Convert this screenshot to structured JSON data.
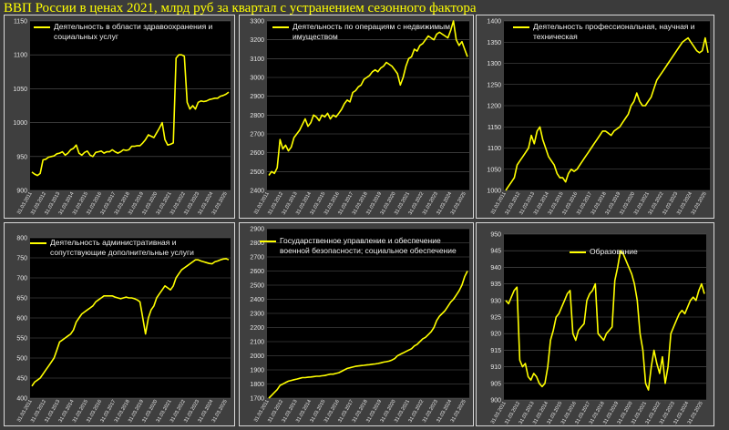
{
  "page_title": "ВВП России в ценах 2021, млрд руб за квартал с устранением сезонного фактора",
  "x_tick_labels": [
    "31.03.2011",
    "31.03.2012",
    "31.03.2013",
    "31.03.2014",
    "31.03.2015",
    "31.03.2016",
    "31.03.2017",
    "31.03.2018",
    "31.03.2019",
    "31.03.2020",
    "31.03.2021",
    "31.03.2022",
    "31.03.2023",
    "31.03.2024",
    "31.03.2025"
  ],
  "colors": {
    "line": "#ffff00",
    "plot_bg": "#000000",
    "panel_bg": "#3f3f3f",
    "grid": "#5a5a5a",
    "text": "#e6e6e6"
  },
  "chart_data": [
    {
      "type": "line",
      "title": "",
      "series": [
        {
          "name": "Деятельность в области здравоохранения и социальных услуг",
          "values": [
            927,
            924,
            922,
            925,
            945,
            946,
            949,
            950,
            951,
            954,
            955,
            957,
            952,
            955,
            960,
            962,
            967,
            955,
            952,
            956,
            958,
            952,
            950,
            956,
            957,
            958,
            955,
            957,
            957,
            960,
            957,
            955,
            957,
            960,
            959,
            960,
            965,
            965,
            966,
            966,
            970,
            975,
            982,
            980,
            978,
            985,
            992,
            1000,
            975,
            967,
            968,
            970,
            1095,
            1100,
            1100,
            1098,
            1030,
            1020,
            1025,
            1020,
            1030,
            1032,
            1031,
            1032,
            1034,
            1035,
            1036,
            1036,
            1039,
            1040,
            1042,
            1045
          ]
        }
      ],
      "ylim": [
        900,
        1150
      ],
      "yticks": [
        900,
        950,
        1000,
        1050,
        1100,
        1150
      ],
      "grid": true
    },
    {
      "type": "line",
      "title": "",
      "series": [
        {
          "name": "Деятельность по операциям с недвижимым имуществом",
          "values": [
            2480,
            2500,
            2490,
            2520,
            2670,
            2620,
            2640,
            2610,
            2630,
            2680,
            2700,
            2720,
            2750,
            2780,
            2740,
            2760,
            2800,
            2790,
            2770,
            2800,
            2790,
            2810,
            2780,
            2800,
            2790,
            2810,
            2830,
            2860,
            2880,
            2870,
            2920,
            2930,
            2950,
            2960,
            2990,
            3000,
            3010,
            3030,
            3040,
            3030,
            3050,
            3060,
            3080,
            3070,
            3060,
            3040,
            3020,
            2960,
            3000,
            3060,
            3100,
            3110,
            3150,
            3140,
            3170,
            3180,
            3200,
            3220,
            3210,
            3200,
            3230,
            3240,
            3230,
            3220,
            3210,
            3250,
            3300,
            3200,
            3170,
            3190,
            3150,
            3110
          ]
        }
      ],
      "ylim": [
        2400,
        3300
      ],
      "yticks": [
        2400,
        2500,
        2600,
        2700,
        2800,
        2900,
        3000,
        3100,
        3200,
        3300
      ],
      "grid": true
    },
    {
      "type": "line",
      "title": "",
      "series": [
        {
          "name": "Деятельность профессиональная, научная и техническая",
          "values": [
            1000,
            1010,
            1020,
            1030,
            1060,
            1070,
            1080,
            1090,
            1100,
            1130,
            1110,
            1140,
            1150,
            1120,
            1100,
            1080,
            1070,
            1060,
            1040,
            1030,
            1030,
            1020,
            1040,
            1050,
            1045,
            1050,
            1060,
            1070,
            1080,
            1090,
            1100,
            1110,
            1120,
            1130,
            1140,
            1140,
            1135,
            1130,
            1140,
            1145,
            1150,
            1160,
            1170,
            1180,
            1200,
            1210,
            1230,
            1210,
            1200,
            1200,
            1210,
            1220,
            1240,
            1260,
            1270,
            1280,
            1290,
            1300,
            1310,
            1320,
            1330,
            1340,
            1350,
            1355,
            1360,
            1350,
            1340,
            1330,
            1325,
            1330,
            1360,
            1325
          ]
        }
      ],
      "ylim": [
        1000,
        1400
      ],
      "yticks": [
        1000,
        1050,
        1100,
        1150,
        1200,
        1250,
        1300,
        1350,
        1400
      ],
      "grid": true
    },
    {
      "type": "line",
      "title": "",
      "series": [
        {
          "name": "Деятельность административная и сопутствующие дополнительные услуги",
          "values": [
            430,
            440,
            445,
            450,
            460,
            470,
            480,
            490,
            500,
            520,
            540,
            545,
            550,
            555,
            560,
            570,
            590,
            600,
            610,
            615,
            620,
            625,
            630,
            640,
            645,
            650,
            655,
            655,
            655,
            655,
            652,
            650,
            648,
            650,
            652,
            650,
            650,
            648,
            645,
            640,
            600,
            560,
            600,
            620,
            630,
            650,
            660,
            670,
            680,
            675,
            670,
            680,
            700,
            710,
            720,
            725,
            730,
            735,
            740,
            745,
            745,
            742,
            740,
            738,
            736,
            735,
            740,
            742,
            745,
            747,
            748,
            745
          ]
        }
      ],
      "ylim": [
        400,
        800
      ],
      "yticks": [
        400,
        450,
        500,
        550,
        600,
        650,
        700,
        750,
        800
      ],
      "grid": true
    },
    {
      "type": "line",
      "title": "",
      "series": [
        {
          "name": "Государственное управление и обеспечение военной безопасности; социальное обеспечение",
          "values": [
            1700,
            1720,
            1740,
            1760,
            1790,
            1800,
            1810,
            1820,
            1825,
            1830,
            1835,
            1840,
            1845,
            1845,
            1848,
            1850,
            1852,
            1855,
            1855,
            1858,
            1860,
            1865,
            1870,
            1870,
            1875,
            1880,
            1890,
            1900,
            1910,
            1915,
            1920,
            1925,
            1928,
            1930,
            1932,
            1935,
            1937,
            1940,
            1942,
            1945,
            1950,
            1955,
            1958,
            1962,
            1970,
            1980,
            2000,
            2010,
            2020,
            2030,
            2040,
            2050,
            2070,
            2080,
            2100,
            2120,
            2130,
            2150,
            2170,
            2200,
            2250,
            2280,
            2300,
            2320,
            2350,
            2380,
            2400,
            2430,
            2460,
            2500,
            2560,
            2600
          ]
        }
      ],
      "ylim": [
        1700,
        2900
      ],
      "yticks": [
        1700,
        1800,
        1900,
        2000,
        2100,
        2200,
        2300,
        2400,
        2500,
        2600,
        2700,
        2800,
        2900
      ],
      "grid": true
    },
    {
      "type": "line",
      "title": "",
      "series": [
        {
          "name": "Образование",
          "values": [
            930,
            929,
            931,
            933,
            934,
            912,
            910,
            911,
            907,
            906,
            908,
            907,
            905,
            904,
            905,
            910,
            918,
            921,
            925,
            926,
            928,
            930,
            932,
            933,
            920,
            918,
            921,
            922,
            923,
            930,
            932,
            933,
            935,
            920,
            919,
            918,
            920,
            921,
            922,
            936,
            940,
            945,
            944,
            942,
            940,
            938,
            935,
            930,
            920,
            915,
            905,
            903,
            910,
            915,
            911,
            908,
            913,
            905,
            910,
            920,
            922,
            924,
            926,
            927,
            926,
            928,
            930,
            931,
            930,
            933,
            935,
            932
          ]
        }
      ],
      "ylim": [
        900,
        950
      ],
      "yticks": [
        900,
        905,
        910,
        915,
        920,
        925,
        930,
        935,
        940,
        945,
        950
      ],
      "grid": true
    }
  ]
}
